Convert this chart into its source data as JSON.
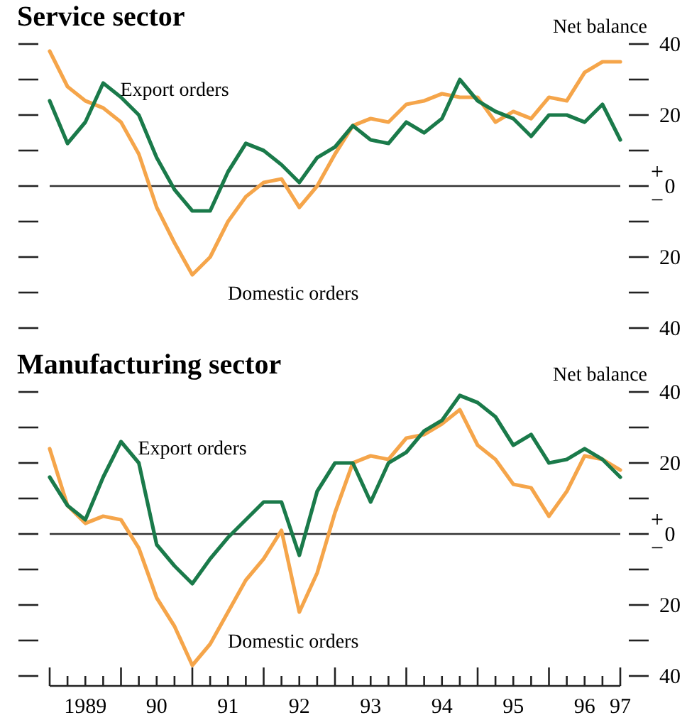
{
  "chart_data": [
    {
      "type": "line",
      "title": "Service sector",
      "ylabel": "Net balance",
      "tick_labels": "y",
      "ylim": [
        -40,
        40
      ],
      "yticks": [
        40,
        {
          "value": 30,
          "label": null
        },
        20,
        {
          "value": 10,
          "label": null
        },
        0,
        {
          "value": -10,
          "label": null
        },
        {
          "value": -20,
          "label": "20"
        },
        {
          "value": -30,
          "label": null
        },
        {
          "value": -40,
          "label": "40"
        }
      ],
      "categories": [
        null,
        null,
        null,
        null,
        null,
        null,
        null,
        null,
        null,
        null,
        null,
        null,
        null,
        null,
        null,
        null,
        null,
        null,
        null,
        null,
        null,
        null,
        null,
        null,
        null,
        null,
        null,
        null,
        null,
        null,
        null,
        null,
        null
      ],
      "ref_lines": [
        {
          "axis": "y",
          "value": 0
        }
      ],
      "annotations": [
        "+",
        "−"
      ],
      "series": [
        {
          "name": "Domestic orders",
          "color": "#f5a54a",
          "values": [
            38,
            28,
            24,
            22,
            18,
            9,
            -6,
            -16,
            -25,
            -20,
            -10,
            -3,
            1,
            2,
            -6,
            0,
            9,
            17,
            19,
            18,
            23,
            24,
            26,
            25,
            25,
            18,
            21,
            19,
            25,
            24,
            32,
            35,
            35
          ]
        },
        {
          "name": "Export orders",
          "color": "#1a7a4a",
          "values": [
            24,
            12,
            18,
            29,
            25,
            20,
            8,
            -1,
            -7,
            -7,
            4,
            12,
            10,
            6,
            1,
            8,
            11,
            17,
            13,
            12,
            18,
            15,
            19,
            30,
            24,
            21,
            19,
            14,
            20,
            20,
            18,
            23,
            13
          ]
        }
      ]
    },
    {
      "type": "line",
      "title": "Manufacturing sector",
      "ylabel": "Net balance",
      "ylim": [
        -40,
        40
      ],
      "yticks": [
        40,
        {
          "value": 30,
          "label": null
        },
        20,
        {
          "value": 10,
          "label": null
        },
        0,
        {
          "value": -10,
          "label": null
        },
        {
          "value": -20,
          "label": "20"
        },
        {
          "value": -30,
          "label": null
        },
        {
          "value": -40,
          "label": "40"
        }
      ],
      "categories": [
        null,
        null,
        "1989",
        null,
        null,
        null,
        "90",
        null,
        null,
        null,
        "91",
        null,
        null,
        null,
        "92",
        null,
        null,
        null,
        "93",
        null,
        null,
        null,
        "94",
        null,
        null,
        null,
        "95",
        null,
        null,
        null,
        "96",
        null,
        "97"
      ],
      "ref_lines": [
        {
          "axis": "y",
          "value": 0
        }
      ],
      "annotations": [
        "+",
        "−"
      ],
      "series": [
        {
          "name": "Domestic orders",
          "color": "#f5a54a",
          "values": [
            24,
            8,
            3,
            5,
            4,
            -4,
            -18,
            -26,
            -37,
            -31,
            -22,
            -13,
            -7,
            1,
            -22,
            -11,
            6,
            20,
            22,
            21,
            27,
            28,
            31,
            35,
            25,
            21,
            14,
            13,
            5,
            12,
            22,
            21,
            18
          ]
        },
        {
          "name": "Export orders",
          "color": "#1a7a4a",
          "values": [
            16,
            8,
            4,
            16,
            26,
            20,
            -3,
            -9,
            -14,
            -7,
            -1,
            4,
            9,
            9,
            -6,
            12,
            20,
            20,
            9,
            20,
            23,
            29,
            32,
            39,
            37,
            33,
            25,
            28,
            20,
            21,
            24,
            21,
            16
          ]
        }
      ]
    }
  ]
}
